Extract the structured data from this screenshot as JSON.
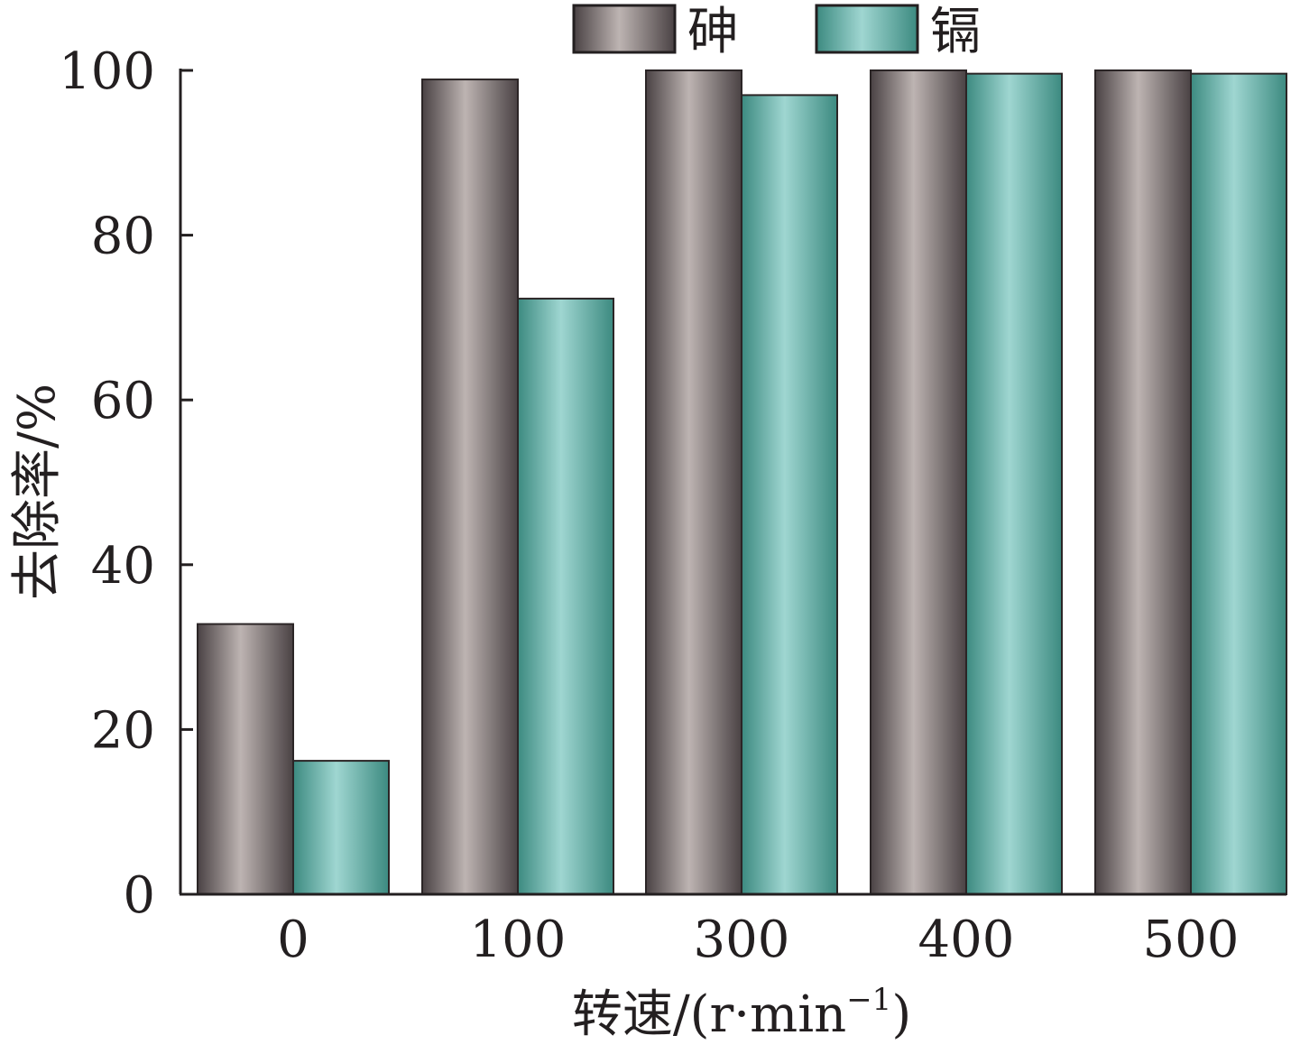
{
  "chart_data": {
    "type": "bar",
    "title": "",
    "xlabel": "转速/(r·min",
    "xlabel_superscript": "−1",
    "xlabel_close": ")",
    "ylabel": "去除率/%",
    "categories": [
      "0",
      "100",
      "300",
      "400",
      "500"
    ],
    "series": [
      {
        "name": "砷",
        "values": [
          32.8,
          98.9,
          100,
          100,
          100
        ]
      },
      {
        "name": "镉",
        "values": [
          16.2,
          72.3,
          97.0,
          99.6,
          99.6
        ]
      }
    ],
    "ylim": [
      0,
      100
    ],
    "yticks": [
      0,
      20,
      40,
      60,
      80,
      100
    ],
    "legend_position": "top",
    "grid": false,
    "colors": {
      "series_1": {
        "edge": "#4a4244",
        "center": "#bdb4b2"
      },
      "series_2": {
        "edge": "#3c8a80",
        "center": "#9fd6d1"
      },
      "axis": "#231f20"
    }
  }
}
